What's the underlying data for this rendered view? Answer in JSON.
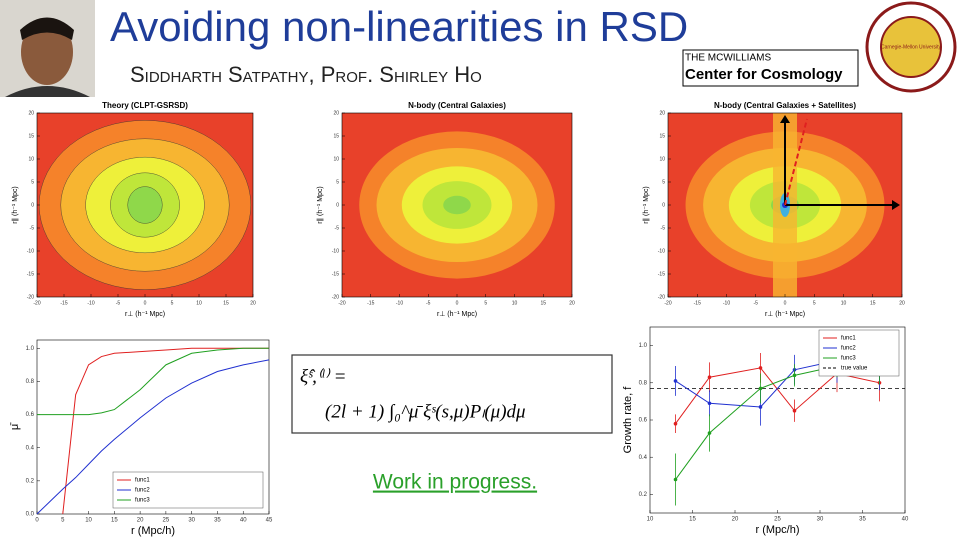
{
  "title": "Avoiding non-linearities in RSD",
  "authors": "Siddharth Satpathy, Prof. Shirley Ho",
  "logo": {
    "top": "THE MCWILLIAMS",
    "bottom": "Center for Cosmology"
  },
  "seal": "Carnegie-Mellon University",
  "equation": {
    "lhs": "ξ̂ˢ,⁽ˡ⁾ =",
    "rhs": "(2l + 1) ∫₀^μ̄ ξˢ(s,μ)Pₗ(μ)dμ"
  },
  "note": "Work in progress.",
  "chart_data": [
    {
      "type": "contour",
      "title": "Theory (CLPT-GSRSD)",
      "xlabel": "r⊥ (h⁻¹ Mpc)",
      "ylabel": "r∥ (h⁻¹ Mpc)",
      "xlim": [
        -20,
        20
      ],
      "ylim": [
        -20,
        20
      ],
      "xticks": [
        -20,
        -15,
        -10,
        -5,
        0,
        5,
        10,
        15,
        20
      ],
      "yticks": [
        -20,
        -15,
        -10,
        -5,
        0,
        5,
        10,
        15,
        20
      ]
    },
    {
      "type": "contour",
      "title": "N-body (Central Galaxies)",
      "xlabel": "r⊥ (h⁻¹ Mpc)",
      "ylabel": "r∥ (h⁻¹ Mpc)",
      "xlim": [
        -20,
        20
      ],
      "ylim": [
        -20,
        20
      ],
      "xticks": [
        -20,
        -15,
        -10,
        -5,
        0,
        5,
        10,
        15,
        20
      ],
      "yticks": [
        -20,
        -15,
        -10,
        -5,
        0,
        5,
        10,
        15,
        20
      ]
    },
    {
      "type": "contour",
      "title": "N-body (Central Galaxies + Satellites)",
      "xlabel": "r⊥ (h⁻¹ Mpc)",
      "ylabel": "r∥ (h⁻¹ Mpc)",
      "xlim": [
        -20,
        20
      ],
      "ylim": [
        -20,
        20
      ],
      "xticks": [
        -20,
        -15,
        -10,
        -5,
        0,
        5,
        10,
        15,
        20
      ],
      "yticks": [
        -20,
        -15,
        -10,
        -5,
        0,
        5,
        10,
        15,
        20
      ]
    },
    {
      "type": "line",
      "xlabel": "r (Mpc/h)",
      "ylabel": "μ̄",
      "xlim": [
        0,
        45
      ],
      "ylim": [
        0,
        1.05
      ],
      "xticks": [
        0,
        5,
        10,
        15,
        20,
        25,
        30,
        35,
        40,
        45
      ],
      "yticks": [
        {
          "value": 0,
          "label": "0.0"
        },
        {
          "value": 0.2,
          "label": "0.2"
        },
        {
          "value": 0.4,
          "label": "0.4"
        },
        {
          "value": 0.6,
          "label": "0.6"
        },
        {
          "value": 0.8,
          "label": "0.8"
        },
        {
          "value": 1,
          "label": "1.0"
        }
      ],
      "x": [
        0,
        5,
        7.5,
        10,
        12.5,
        15,
        20,
        25,
        30,
        35,
        40,
        45
      ],
      "series": [
        {
          "name": "func1",
          "color": "#e02020",
          "values": [
            null,
            0,
            0.72,
            0.9,
            0.95,
            0.97,
            0.98,
            0.99,
            1.0,
            1.0,
            1.0,
            1.0
          ]
        },
        {
          "name": "func2",
          "color": "#2030d0",
          "values": [
            0,
            0.15,
            0.22,
            0.3,
            0.38,
            0.45,
            0.58,
            0.7,
            0.79,
            0.86,
            0.9,
            0.93
          ]
        },
        {
          "name": "func3",
          "color": "#20a020",
          "values": [
            0.6,
            0.6,
            0.6,
            0.6,
            0.61,
            0.63,
            0.75,
            0.9,
            0.97,
            0.99,
            1.0,
            1.0
          ]
        }
      ],
      "legend": "lower right"
    },
    {
      "type": "errorbar",
      "xlabel": "r (Mpc/h)",
      "ylabel": "Growth rate, f",
      "xlim": [
        10,
        40
      ],
      "ylim": [
        0.1,
        1.1
      ],
      "xticks": [
        10,
        15,
        20,
        25,
        30,
        35,
        40
      ],
      "yticks": [
        {
          "value": 0.2,
          "label": "0.2"
        },
        {
          "value": 0.4,
          "label": "0.4"
        },
        {
          "value": 0.6,
          "label": "0.6"
        },
        {
          "value": 0.8,
          "label": "0.8"
        },
        {
          "value": 1,
          "label": "1.0"
        }
      ],
      "x": [
        13,
        17,
        23,
        27,
        32,
        37
      ],
      "series": [
        {
          "name": "func1",
          "color": "#e02020",
          "values": [
            0.58,
            0.83,
            0.88,
            0.65,
            0.85,
            0.8
          ],
          "errors": [
            0.05,
            0.08,
            0.08,
            0.06,
            0.1,
            0.1
          ]
        },
        {
          "name": "func2",
          "color": "#2030d0",
          "values": [
            0.81,
            0.69,
            0.67,
            0.87,
            0.92,
            0.85
          ],
          "errors": [
            0.08,
            0.07,
            0.1,
            0.08,
            0.12,
            0.09
          ]
        },
        {
          "name": "func3",
          "color": "#20a020",
          "values": [
            0.28,
            0.53,
            0.77,
            0.84,
            0.89,
            0.85
          ],
          "errors": [
            0.14,
            0.1,
            0.08,
            0.06,
            0.06,
            0.06
          ]
        }
      ],
      "reference": {
        "name": "true value",
        "value": 0.77
      },
      "legend": "upper right"
    }
  ]
}
